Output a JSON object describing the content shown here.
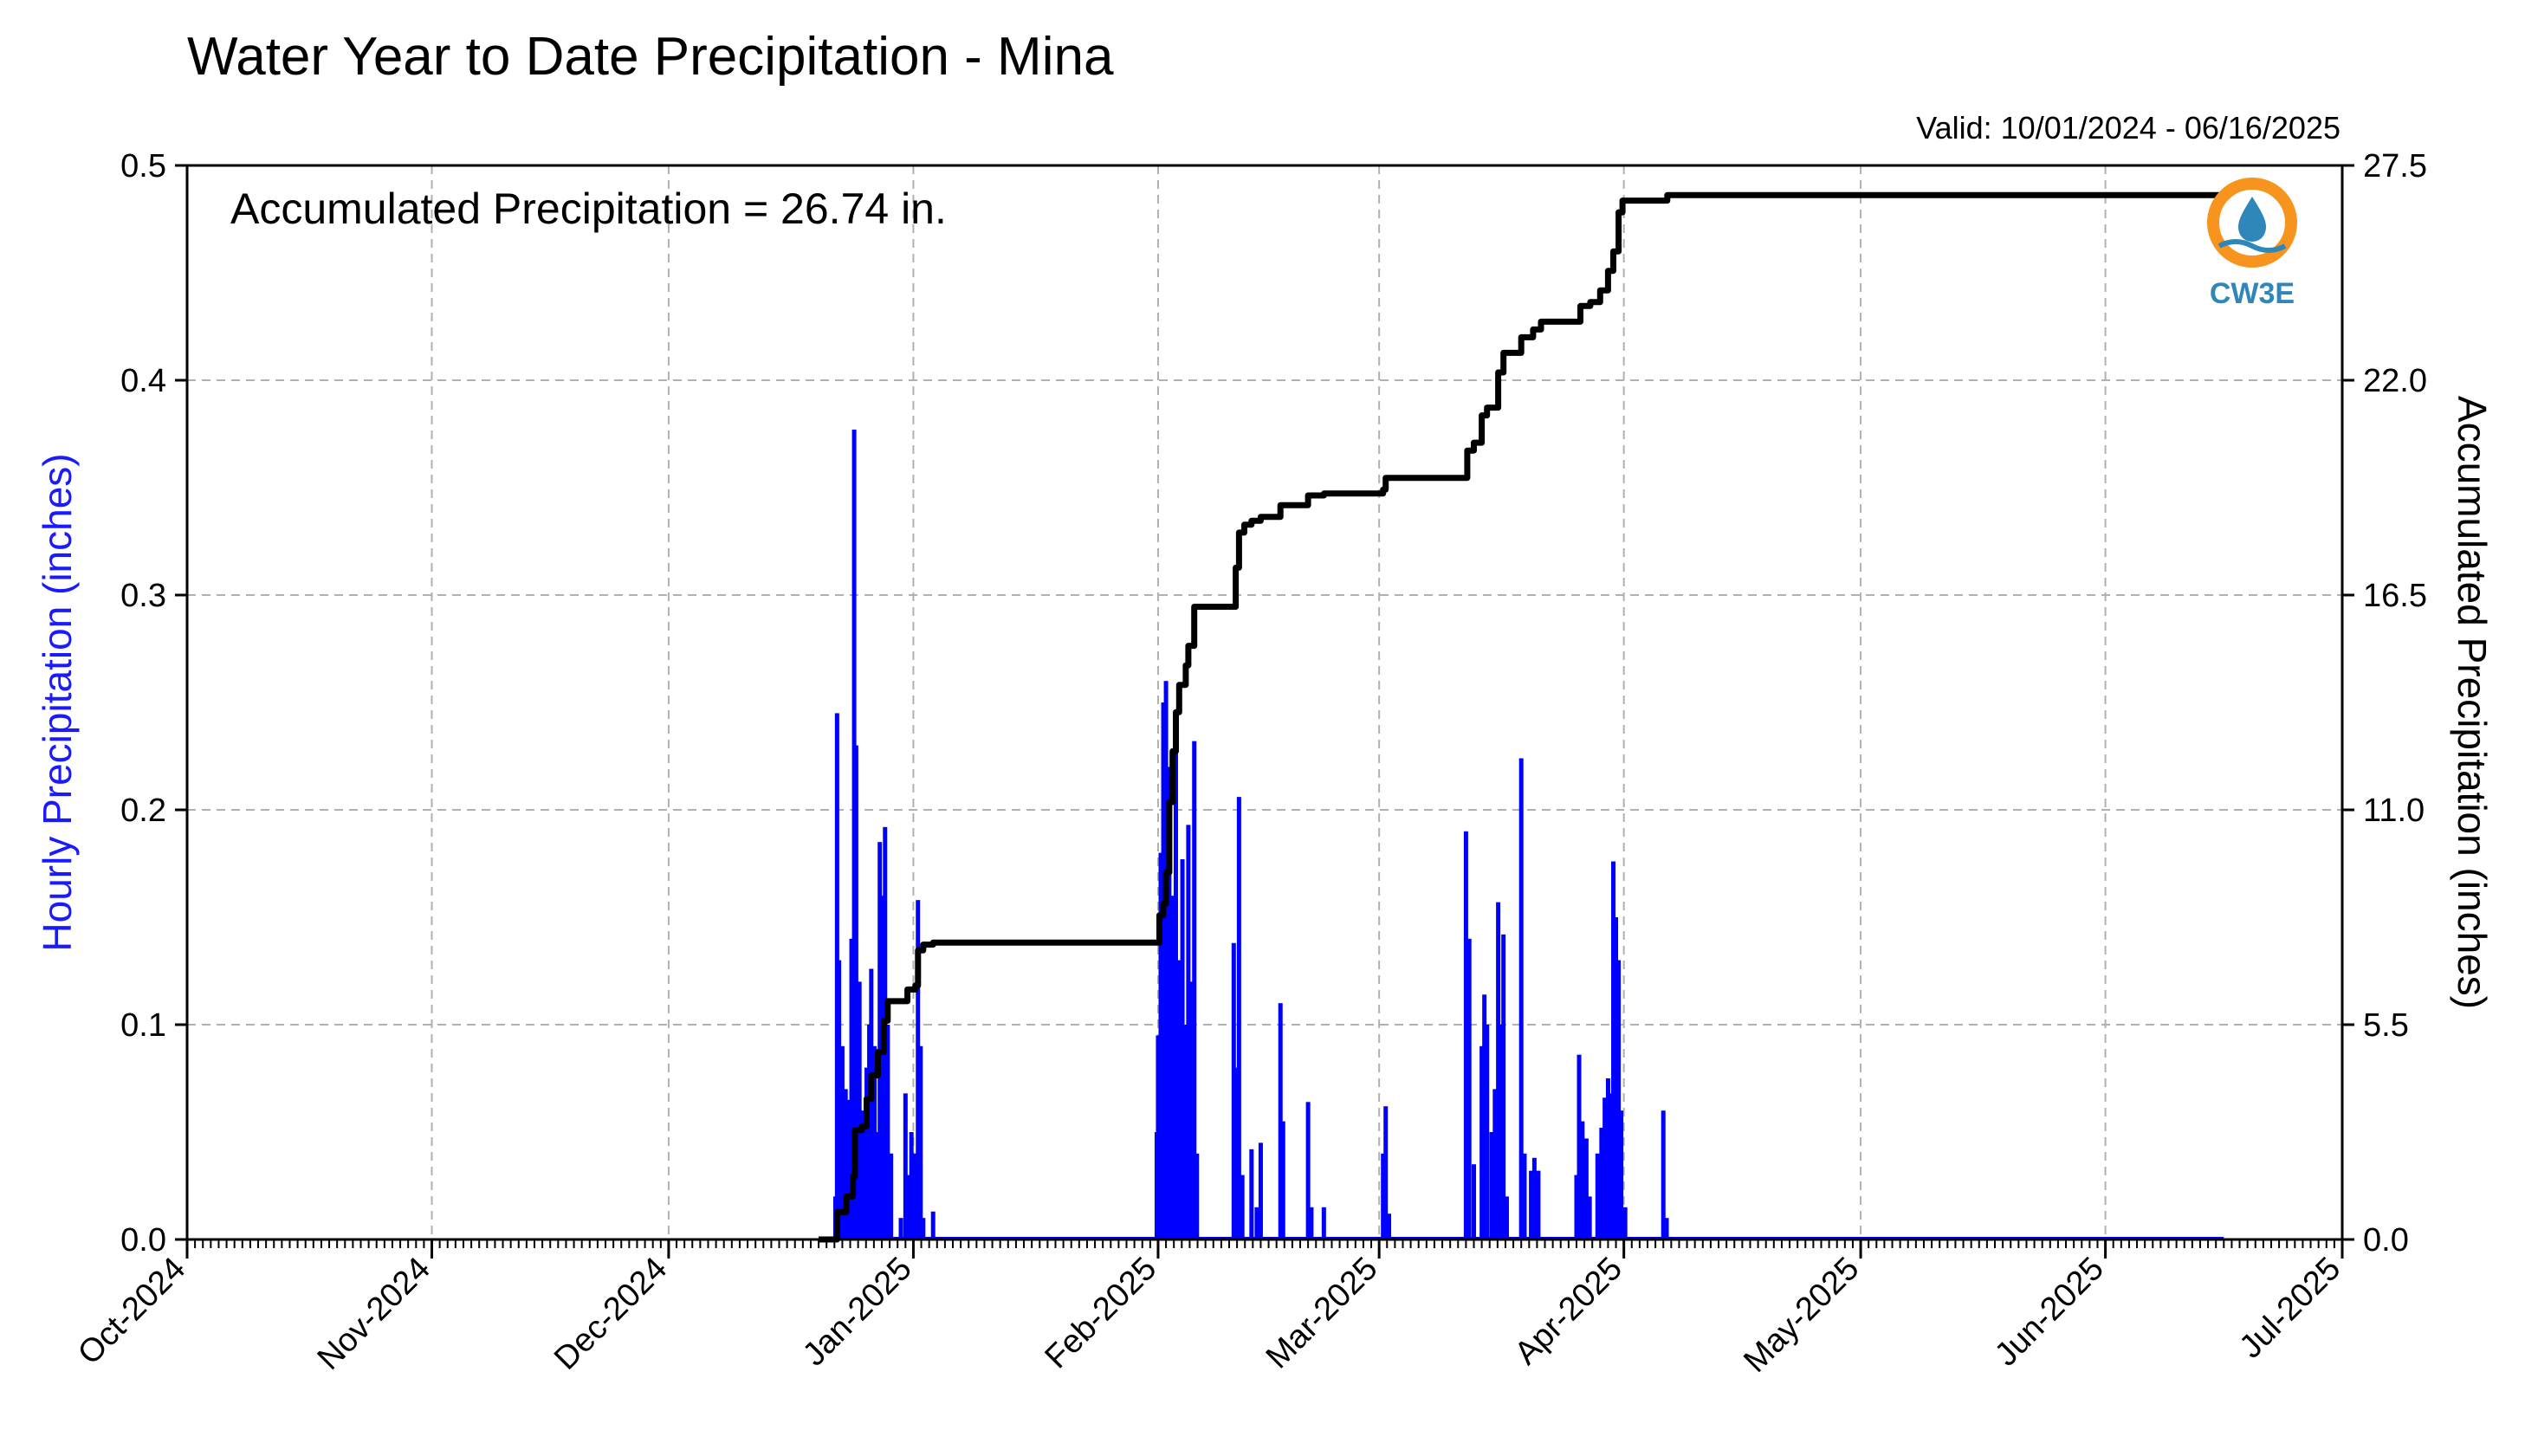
{
  "chart_data": {
    "type": "bar",
    "title": "Water Year to Date Precipitation - Mina",
    "subtitle": "Valid: 10/01/2024 - 06/16/2025",
    "annotation": "Accumulated Precipitation = 26.74 in.",
    "ylabel": "Hourly Precipitation (inches)",
    "y2label": "Accumulated Precipitation (inches)",
    "xlim": [
      "2024-10-01",
      "2025-07-01"
    ],
    "ylim": [
      0,
      0.5
    ],
    "y2lim": [
      0,
      27.5
    ],
    "grid": true,
    "x_ticks": [
      "Oct-2024",
      "Nov-2024",
      "Dec-2024",
      "Jan-2025",
      "Feb-2025",
      "Mar-2025",
      "Apr-2025",
      "May-2025",
      "Jun-2025",
      "Jul-2025"
    ],
    "y_ticks": [
      "0.0",
      "0.1",
      "0.2",
      "0.3",
      "0.4",
      "0.5"
    ],
    "y2_ticks": [
      "0.0",
      "5.5",
      "11.0",
      "16.5",
      "22.0",
      "27.5"
    ],
    "colors": {
      "hourly": "#0000ff",
      "accumulated": "#000000",
      "left_axis_label": "#1a1aff",
      "grid": "#b0b0b0"
    },
    "series": [
      {
        "type": "bar",
        "axis": "left",
        "points": [
          {
            "x": "2024-12-22T03:00",
            "y": 0.02
          },
          {
            "x": "2024-12-22T08:00",
            "y": 0.245
          },
          {
            "x": "2024-12-22T14:00",
            "y": 0.13
          },
          {
            "x": "2024-12-23T00:00",
            "y": 0.09
          },
          {
            "x": "2024-12-23T10:00",
            "y": 0.07
          },
          {
            "x": "2024-12-23T20:00",
            "y": 0.065
          },
          {
            "x": "2024-12-24T04:00",
            "y": 0.14
          },
          {
            "x": "2024-12-24T12:00",
            "y": 0.377
          },
          {
            "x": "2024-12-24T18:00",
            "y": 0.23
          },
          {
            "x": "2024-12-25T04:00",
            "y": 0.12
          },
          {
            "x": "2024-12-25T14:00",
            "y": 0.06
          },
          {
            "x": "2024-12-26T02:00",
            "y": 0.08
          },
          {
            "x": "2024-12-26T10:00",
            "y": 0.1
          },
          {
            "x": "2024-12-26T16:00",
            "y": 0.126
          },
          {
            "x": "2024-12-27T02:00",
            "y": 0.09
          },
          {
            "x": "2024-12-27T12:00",
            "y": 0.05
          },
          {
            "x": "2024-12-27T18:00",
            "y": 0.185
          },
          {
            "x": "2024-12-28T04:00",
            "y": 0.16
          },
          {
            "x": "2024-12-28T10:00",
            "y": 0.192
          },
          {
            "x": "2024-12-28T18:00",
            "y": 0.1
          },
          {
            "x": "2024-12-29T04:00",
            "y": 0.04
          },
          {
            "x": "2024-12-30T10:00",
            "y": 0.01
          },
          {
            "x": "2024-12-31T00:00",
            "y": 0.068
          },
          {
            "x": "2024-12-31T10:00",
            "y": 0.03
          },
          {
            "x": "2024-12-31T18:00",
            "y": 0.05
          },
          {
            "x": "2025-01-01T04:00",
            "y": 0.04
          },
          {
            "x": "2025-01-01T14:00",
            "y": 0.158
          },
          {
            "x": "2025-01-01T22:00",
            "y": 0.09
          },
          {
            "x": "2025-01-02T06:00",
            "y": 0.01
          },
          {
            "x": "2025-01-03T12:00",
            "y": 0.013
          },
          {
            "x": "2025-01-31T20:00",
            "y": 0.05
          },
          {
            "x": "2025-02-01T00:00",
            "y": 0.095
          },
          {
            "x": "2025-02-01T08:00",
            "y": 0.18
          },
          {
            "x": "2025-02-01T16:00",
            "y": 0.25
          },
          {
            "x": "2025-02-02T00:00",
            "y": 0.26
          },
          {
            "x": "2025-02-02T10:00",
            "y": 0.22
          },
          {
            "x": "2025-02-02T20:00",
            "y": 0.16
          },
          {
            "x": "2025-02-03T06:00",
            "y": 0.245
          },
          {
            "x": "2025-02-03T16:00",
            "y": 0.13
          },
          {
            "x": "2025-02-04T02:00",
            "y": 0.177
          },
          {
            "x": "2025-02-04T12:00",
            "y": 0.1
          },
          {
            "x": "2025-02-04T20:00",
            "y": 0.193
          },
          {
            "x": "2025-02-05T06:00",
            "y": 0.12
          },
          {
            "x": "2025-02-05T14:00",
            "y": 0.232
          },
          {
            "x": "2025-02-05T22:00",
            "y": 0.04
          },
          {
            "x": "2025-02-10T14:00",
            "y": 0.138
          },
          {
            "x": "2025-02-10T22:00",
            "y": 0.08
          },
          {
            "x": "2025-02-11T06:00",
            "y": 0.206
          },
          {
            "x": "2025-02-11T16:00",
            "y": 0.03
          },
          {
            "x": "2025-02-12T20:00",
            "y": 0.042
          },
          {
            "x": "2025-02-13T12:00",
            "y": 0.015
          },
          {
            "x": "2025-02-14T00:00",
            "y": 0.045
          },
          {
            "x": "2025-02-16T12:00",
            "y": 0.11
          },
          {
            "x": "2025-02-16T20:00",
            "y": 0.055
          },
          {
            "x": "2025-02-20T00:00",
            "y": 0.064
          },
          {
            "x": "2025-02-20T10:00",
            "y": 0.015
          },
          {
            "x": "2025-02-22T00:00",
            "y": 0.015
          },
          {
            "x": "2025-03-01T12:00",
            "y": 0.04
          },
          {
            "x": "2025-03-01T20:00",
            "y": 0.062
          },
          {
            "x": "2025-03-02T06:00",
            "y": 0.012
          },
          {
            "x": "2025-03-12T00:00",
            "y": 0.19
          },
          {
            "x": "2025-03-12T10:00",
            "y": 0.14
          },
          {
            "x": "2025-03-13T00:00",
            "y": 0.035
          },
          {
            "x": "2025-03-14T00:00",
            "y": 0.09
          },
          {
            "x": "2025-03-14T08:00",
            "y": 0.114
          },
          {
            "x": "2025-03-14T16:00",
            "y": 0.1
          },
          {
            "x": "2025-03-15T06:00",
            "y": 0.05
          },
          {
            "x": "2025-03-15T16:00",
            "y": 0.07
          },
          {
            "x": "2025-03-16T02:00",
            "y": 0.157
          },
          {
            "x": "2025-03-16T10:00",
            "y": 0.1
          },
          {
            "x": "2025-03-16T18:00",
            "y": 0.142
          },
          {
            "x": "2025-03-17T04:00",
            "y": 0.02
          },
          {
            "x": "2025-03-19T00:00",
            "y": 0.224
          },
          {
            "x": "2025-03-19T10:00",
            "y": 0.04
          },
          {
            "x": "2025-03-20T06:00",
            "y": 0.032
          },
          {
            "x": "2025-03-20T16:00",
            "y": 0.038
          },
          {
            "x": "2025-03-21T04:00",
            "y": 0.032
          },
          {
            "x": "2025-03-26T00:00",
            "y": 0.03
          },
          {
            "x": "2025-03-26T08:00",
            "y": 0.086
          },
          {
            "x": "2025-03-26T18:00",
            "y": 0.055
          },
          {
            "x": "2025-03-27T06:00",
            "y": 0.047
          },
          {
            "x": "2025-03-27T16:00",
            "y": 0.02
          },
          {
            "x": "2025-03-28T16:00",
            "y": 0.04
          },
          {
            "x": "2025-03-29T04:00",
            "y": 0.052
          },
          {
            "x": "2025-03-29T14:00",
            "y": 0.066
          },
          {
            "x": "2025-03-30T00:00",
            "y": 0.075
          },
          {
            "x": "2025-03-30T08:00",
            "y": 0.068
          },
          {
            "x": "2025-03-30T16:00",
            "y": 0.176
          },
          {
            "x": "2025-03-31T00:00",
            "y": 0.15
          },
          {
            "x": "2025-03-31T08:00",
            "y": 0.13
          },
          {
            "x": "2025-03-31T16:00",
            "y": 0.06
          },
          {
            "x": "2025-04-01T04:00",
            "y": 0.015
          },
          {
            "x": "2025-04-06T00:00",
            "y": 0.06
          },
          {
            "x": "2025-04-06T10:00",
            "y": 0.01
          }
        ]
      },
      {
        "type": "line",
        "axis": "right",
        "step": true,
        "points": [
          {
            "x": "2024-12-20T00:00",
            "y": 0.0
          },
          {
            "x": "2024-12-22T00:00",
            "y": 0.0
          },
          {
            "x": "2024-12-22T08:00",
            "y": 0.7
          },
          {
            "x": "2024-12-23T12:00",
            "y": 1.1
          },
          {
            "x": "2024-12-24T08:00",
            "y": 1.6
          },
          {
            "x": "2024-12-24T14:00",
            "y": 2.8
          },
          {
            "x": "2024-12-25T12:00",
            "y": 2.9
          },
          {
            "x": "2024-12-26T02:00",
            "y": 3.6
          },
          {
            "x": "2024-12-26T16:00",
            "y": 4.2
          },
          {
            "x": "2024-12-27T12:00",
            "y": 4.8
          },
          {
            "x": "2024-12-28T06:00",
            "y": 5.6
          },
          {
            "x": "2024-12-28T18:00",
            "y": 6.1
          },
          {
            "x": "2024-12-31T00:00",
            "y": 6.1
          },
          {
            "x": "2024-12-31T06:00",
            "y": 6.4
          },
          {
            "x": "2025-01-01T06:00",
            "y": 6.5
          },
          {
            "x": "2025-01-01T14:00",
            "y": 7.4
          },
          {
            "x": "2025-01-02T06:00",
            "y": 7.55
          },
          {
            "x": "2025-01-03T12:00",
            "y": 7.6
          },
          {
            "x": "2025-01-31T20:00",
            "y": 7.6
          },
          {
            "x": "2025-02-01T04:00",
            "y": 8.3
          },
          {
            "x": "2025-02-01T16:00",
            "y": 8.6
          },
          {
            "x": "2025-02-02T00:00",
            "y": 9.4
          },
          {
            "x": "2025-02-02T10:00",
            "y": 11.2
          },
          {
            "x": "2025-02-02T20:00",
            "y": 12.5
          },
          {
            "x": "2025-02-03T06:00",
            "y": 13.5
          },
          {
            "x": "2025-02-03T16:00",
            "y": 14.2
          },
          {
            "x": "2025-02-04T12:00",
            "y": 14.7
          },
          {
            "x": "2025-02-04T20:00",
            "y": 15.2
          },
          {
            "x": "2025-02-05T14:00",
            "y": 16.2
          },
          {
            "x": "2025-02-10T12:00",
            "y": 16.2
          },
          {
            "x": "2025-02-10T20:00",
            "y": 17.2
          },
          {
            "x": "2025-02-11T06:00",
            "y": 18.1
          },
          {
            "x": "2025-02-11T22:00",
            "y": 18.3
          },
          {
            "x": "2025-02-12T20:00",
            "y": 18.4
          },
          {
            "x": "2025-02-14T00:00",
            "y": 18.5
          },
          {
            "x": "2025-02-16T12:00",
            "y": 18.8
          },
          {
            "x": "2025-02-20T00:00",
            "y": 19.05
          },
          {
            "x": "2025-02-22T00:00",
            "y": 19.1
          },
          {
            "x": "2025-03-01T12:00",
            "y": 19.2
          },
          {
            "x": "2025-03-01T20:00",
            "y": 19.5
          },
          {
            "x": "2025-03-11T22:00",
            "y": 19.5
          },
          {
            "x": "2025-03-12T04:00",
            "y": 20.2
          },
          {
            "x": "2025-03-13T00:00",
            "y": 20.4
          },
          {
            "x": "2025-03-14T00:00",
            "y": 21.1
          },
          {
            "x": "2025-03-14T16:00",
            "y": 21.3
          },
          {
            "x": "2025-03-15T14:00",
            "y": 21.3
          },
          {
            "x": "2025-03-16T02:00",
            "y": 22.2
          },
          {
            "x": "2025-03-16T18:00",
            "y": 22.7
          },
          {
            "x": "2025-03-17T12:00",
            "y": 22.7
          },
          {
            "x": "2025-03-19T00:00",
            "y": 23.1
          },
          {
            "x": "2025-03-20T12:00",
            "y": 23.3
          },
          {
            "x": "2025-03-21T12:00",
            "y": 23.5
          },
          {
            "x": "2025-03-26T00:00",
            "y": 23.5
          },
          {
            "x": "2025-03-26T12:00",
            "y": 23.9
          },
          {
            "x": "2025-03-27T18:00",
            "y": 24.0
          },
          {
            "x": "2025-03-29T00:00",
            "y": 24.3
          },
          {
            "x": "2025-03-30T00:00",
            "y": 24.8
          },
          {
            "x": "2025-03-30T16:00",
            "y": 25.3
          },
          {
            "x": "2025-03-31T08:00",
            "y": 26.3
          },
          {
            "x": "2025-03-31T20:00",
            "y": 26.6
          },
          {
            "x": "2025-04-06T00:00",
            "y": 26.6
          },
          {
            "x": "2025-04-06T12:00",
            "y": 26.74
          },
          {
            "x": "2025-06-16T00:00",
            "y": 26.74
          }
        ]
      }
    ]
  },
  "logo": {
    "text": "CW3E",
    "ring_color": "#f7941d",
    "mark_color": "#2f86b8"
  }
}
